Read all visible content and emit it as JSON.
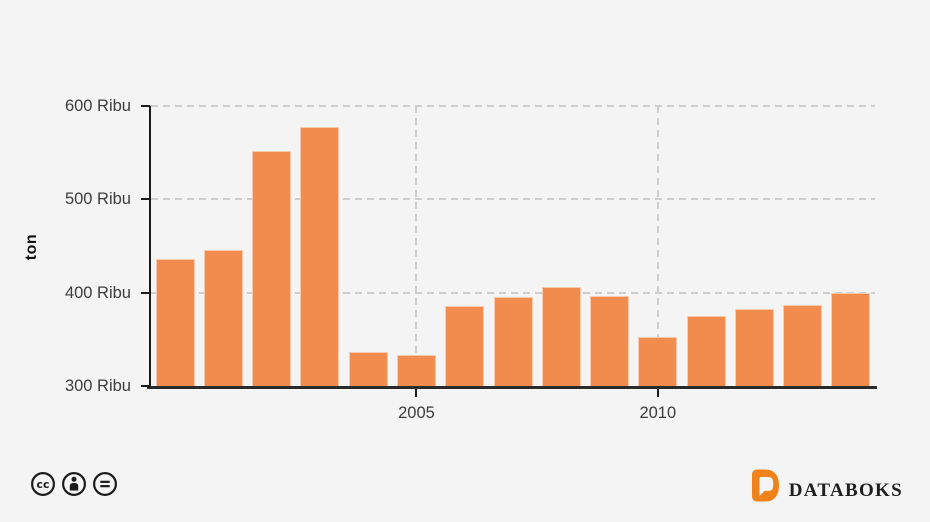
{
  "chart_data": {
    "type": "bar",
    "title": "",
    "ylabel": "ton",
    "x": [
      2000,
      2001,
      2002,
      2003,
      2004,
      2005,
      2006,
      2007,
      2008,
      2009,
      2010,
      2011,
      2012,
      2013,
      2014
    ],
    "values": [
      436,
      446,
      552,
      577,
      336,
      333,
      386,
      395,
      406,
      396,
      353,
      375,
      382,
      387,
      400
    ],
    "value_unit": "Ribu ton",
    "ylim": [
      300,
      600
    ],
    "ytick_values": [
      600,
      500,
      400,
      300
    ],
    "ytick_labels": [
      "600 Ribu",
      "500 Ribu",
      "400 Ribu",
      "300 Ribu"
    ],
    "xtick_years": [
      2005,
      2010
    ],
    "xtick_labels": [
      "2005",
      "2010"
    ],
    "grid": {
      "horizontal": "dashed",
      "vertical": "dashed at labeled years"
    },
    "legend": "none",
    "bar_color": "#f28b4e"
  },
  "footer": {
    "license_icons": [
      "cc-icon",
      "by-icon",
      "nd-icon"
    ],
    "brand": {
      "name": "DATABOKS",
      "logo_color": "#f0821c"
    }
  },
  "colors": {
    "background": "#f4f4f4",
    "axis": "#1a1a1a",
    "baseline": "#2b2b2b",
    "grid": "#cdcdcd",
    "tick_text": "#3d3d3d",
    "bar": "#f28b4e"
  }
}
